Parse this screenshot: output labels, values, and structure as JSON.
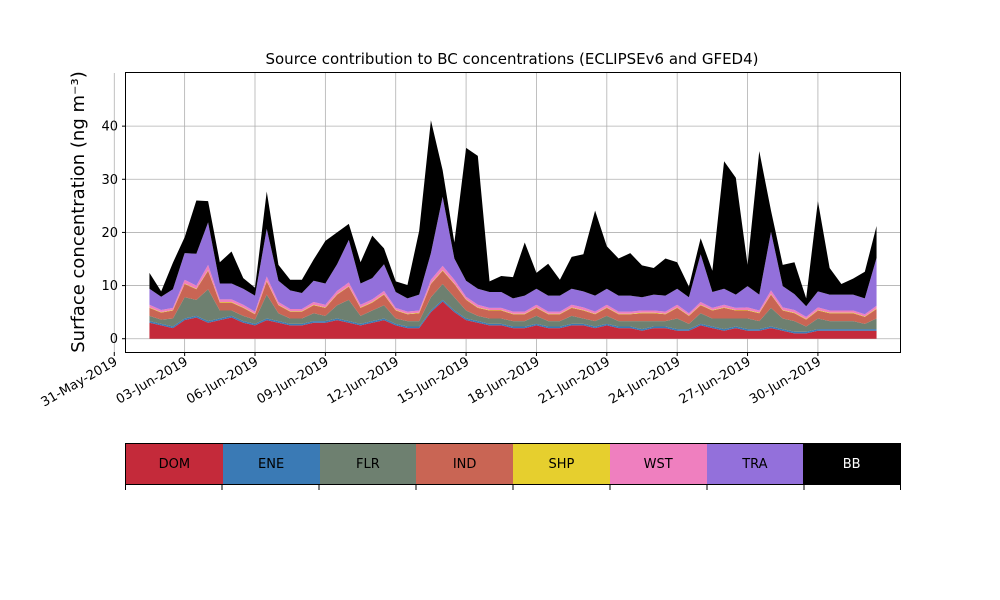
{
  "chart_data": {
    "type": "area",
    "stacked": true,
    "title": "Source contribution to BC concentrations (ECLIPSEv6 and GFED4)",
    "ylabel": "Surface concentration (ng m⁻³)",
    "xlabel": "",
    "ylim": [
      -2.5,
      50
    ],
    "xlim": [
      "2019-05-31T12:00",
      "2019-07-03T12:00"
    ],
    "grid": true,
    "yticks": [
      0,
      10,
      20,
      30,
      40
    ],
    "xtick_labels": [
      "31-May-2019",
      "03-Jun-2019",
      "06-Jun-2019",
      "09-Jun-2019",
      "12-Jun-2019",
      "15-Jun-2019",
      "18-Jun-2019",
      "21-Jun-2019",
      "24-Jun-2019",
      "27-Jun-2019",
      "30-Jun-2019"
    ],
    "x": [
      "2019-06-01T12:00",
      "2019-06-02T00:00",
      "2019-06-02T12:00",
      "2019-06-03T00:00",
      "2019-06-03T12:00",
      "2019-06-04T00:00",
      "2019-06-04T12:00",
      "2019-06-05T00:00",
      "2019-06-05T12:00",
      "2019-06-06T00:00",
      "2019-06-06T12:00",
      "2019-06-07T00:00",
      "2019-06-07T12:00",
      "2019-06-08T00:00",
      "2019-06-08T12:00",
      "2019-06-09T00:00",
      "2019-06-09T12:00",
      "2019-06-10T00:00",
      "2019-06-10T12:00",
      "2019-06-11T00:00",
      "2019-06-11T12:00",
      "2019-06-12T00:00",
      "2019-06-12T12:00",
      "2019-06-13T00:00",
      "2019-06-13T12:00",
      "2019-06-14T00:00",
      "2019-06-14T12:00",
      "2019-06-15T00:00",
      "2019-06-15T12:00",
      "2019-06-16T00:00",
      "2019-06-16T12:00",
      "2019-06-17T00:00",
      "2019-06-17T12:00",
      "2019-06-18T00:00",
      "2019-06-18T12:00",
      "2019-06-19T00:00",
      "2019-06-19T12:00",
      "2019-06-20T00:00",
      "2019-06-20T12:00",
      "2019-06-21T00:00",
      "2019-06-21T12:00",
      "2019-06-22T00:00",
      "2019-06-22T12:00",
      "2019-06-23T00:00",
      "2019-06-23T12:00",
      "2019-06-24T00:00",
      "2019-06-24T12:00",
      "2019-06-25T00:00",
      "2019-06-25T12:00",
      "2019-06-26T00:00",
      "2019-06-26T12:00",
      "2019-06-27T00:00",
      "2019-06-27T12:00",
      "2019-06-28T00:00",
      "2019-06-28T12:00",
      "2019-06-29T00:00",
      "2019-06-29T12:00",
      "2019-06-30T00:00",
      "2019-06-30T12:00",
      "2019-07-01T00:00",
      "2019-07-01T12:00",
      "2019-07-02T00:00",
      "2019-07-02T12:00"
    ],
    "series": [
      {
        "name": "DOM",
        "color": "#c42a3a",
        "values": [
          3.0,
          2.5,
          2.0,
          3.5,
          4.0,
          3.0,
          3.5,
          4.0,
          3.0,
          2.5,
          3.5,
          3.0,
          2.5,
          2.5,
          3.0,
          3.0,
          3.5,
          3.0,
          2.5,
          3.0,
          3.5,
          2.5,
          2.0,
          2.0,
          5.0,
          7.0,
          5.0,
          3.5,
          3.0,
          2.5,
          2.5,
          2.0,
          2.0,
          2.5,
          2.0,
          2.0,
          2.5,
          2.5,
          2.0,
          2.5,
          2.0,
          2.0,
          1.5,
          2.0,
          2.0,
          1.5,
          1.5,
          2.5,
          2.0,
          1.5,
          2.0,
          1.5,
          1.5,
          2.0,
          1.5,
          1.0,
          1.0,
          1.5,
          1.5,
          1.5,
          1.5,
          1.5,
          1.5
        ]
      },
      {
        "name": "ENE",
        "color": "#3a7ab5",
        "values": [
          0.3,
          0.3,
          0.3,
          0.3,
          0.3,
          0.3,
          0.3,
          0.3,
          0.3,
          0.3,
          0.3,
          0.3,
          0.3,
          0.3,
          0.3,
          0.3,
          0.3,
          0.3,
          0.3,
          0.3,
          0.3,
          0.3,
          0.3,
          0.3,
          0.3,
          0.3,
          0.3,
          0.3,
          0.3,
          0.3,
          0.3,
          0.3,
          0.3,
          0.3,
          0.3,
          0.3,
          0.3,
          0.3,
          0.3,
          0.3,
          0.3,
          0.3,
          0.3,
          0.3,
          0.3,
          0.3,
          0.3,
          0.3,
          0.3,
          0.3,
          0.3,
          0.3,
          0.3,
          0.3,
          0.3,
          0.3,
          0.3,
          0.3,
          0.3,
          0.3,
          0.3,
          0.3,
          0.3
        ]
      },
      {
        "name": "FLR",
        "color": "#6e8070",
        "values": [
          1.0,
          0.8,
          1.5,
          4.0,
          3.0,
          6.0,
          1.5,
          1.0,
          1.0,
          0.8,
          4.5,
          1.5,
          1.0,
          1.0,
          1.5,
          1.0,
          2.5,
          4.0,
          1.5,
          2.0,
          2.5,
          1.0,
          1.0,
          1.0,
          2.5,
          3.0,
          2.5,
          1.5,
          1.0,
          1.0,
          1.0,
          1.0,
          1.0,
          1.5,
          1.0,
          1.0,
          1.5,
          1.0,
          1.0,
          1.5,
          1.0,
          1.0,
          1.5,
          1.0,
          1.0,
          2.0,
          1.0,
          2.0,
          1.5,
          2.0,
          1.5,
          2.0,
          1.5,
          3.5,
          2.0,
          2.0,
          1.0,
          2.0,
          1.5,
          1.5,
          1.5,
          1.0,
          2.0
        ]
      },
      {
        "name": "IND",
        "color": "#c96554",
        "values": [
          1.5,
          1.3,
          1.5,
          2.5,
          2.0,
          3.5,
          1.5,
          1.5,
          1.5,
          1.0,
          2.5,
          1.5,
          1.3,
          1.3,
          1.5,
          1.5,
          2.0,
          2.5,
          1.5,
          1.5,
          2.0,
          1.5,
          1.3,
          1.5,
          2.5,
          2.5,
          2.5,
          2.0,
          1.5,
          1.5,
          1.5,
          1.3,
          1.3,
          1.5,
          1.3,
          1.3,
          1.5,
          1.5,
          1.3,
          1.5,
          1.3,
          1.3,
          1.5,
          1.5,
          1.3,
          2.0,
          1.5,
          1.5,
          1.5,
          2.0,
          1.5,
          1.5,
          1.5,
          2.5,
          1.5,
          1.5,
          1.3,
          1.5,
          1.5,
          1.5,
          1.5,
          1.3,
          1.8
        ]
      },
      {
        "name": "SHP",
        "color": "#e6cf2e",
        "values": [
          0.1,
          0.1,
          0.1,
          0.1,
          0.1,
          0.1,
          0.1,
          0.1,
          0.1,
          0.1,
          0.1,
          0.1,
          0.1,
          0.1,
          0.1,
          0.1,
          0.1,
          0.1,
          0.1,
          0.1,
          0.1,
          0.1,
          0.1,
          0.1,
          0.1,
          0.1,
          0.1,
          0.1,
          0.1,
          0.1,
          0.1,
          0.1,
          0.1,
          0.1,
          0.1,
          0.1,
          0.1,
          0.1,
          0.1,
          0.1,
          0.1,
          0.1,
          0.1,
          0.1,
          0.1,
          0.1,
          0.1,
          0.1,
          0.1,
          0.1,
          0.1,
          0.1,
          0.1,
          0.1,
          0.1,
          0.1,
          0.1,
          0.1,
          0.1,
          0.1,
          0.1,
          0.1,
          0.1
        ]
      },
      {
        "name": "WST",
        "color": "#ef7fbf",
        "values": [
          0.5,
          0.4,
          0.4,
          0.7,
          0.6,
          1.0,
          0.5,
          0.5,
          0.5,
          0.4,
          0.8,
          0.5,
          0.4,
          0.4,
          0.5,
          0.5,
          0.6,
          0.7,
          0.5,
          0.5,
          0.6,
          0.4,
          0.4,
          0.4,
          0.7,
          0.8,
          0.7,
          0.5,
          0.5,
          0.4,
          0.4,
          0.4,
          0.4,
          0.5,
          0.4,
          0.4,
          0.5,
          0.5,
          0.4,
          0.5,
          0.4,
          0.4,
          0.4,
          0.4,
          0.4,
          0.5,
          0.4,
          0.5,
          0.4,
          0.5,
          0.4,
          0.5,
          0.4,
          0.7,
          0.5,
          0.5,
          0.4,
          0.5,
          0.4,
          0.4,
          0.4,
          0.4,
          0.5
        ]
      },
      {
        "name": "TRA",
        "color": "#9370db",
        "values": [
          3.0,
          2.5,
          3.5,
          5.0,
          6.0,
          8.0,
          3.0,
          3.0,
          3.0,
          3.0,
          9.0,
          4.0,
          3.5,
          3.0,
          4.0,
          4.0,
          5.0,
          8.0,
          4.0,
          4.0,
          5.0,
          3.0,
          2.5,
          3.0,
          5.0,
          13.0,
          4.0,
          3.0,
          3.0,
          3.0,
          3.0,
          2.5,
          3.0,
          3.0,
          3.0,
          3.0,
          3.0,
          3.0,
          3.0,
          3.0,
          3.0,
          3.0,
          2.5,
          3.0,
          3.0,
          3.0,
          3.0,
          9.0,
          3.0,
          3.0,
          2.5,
          4.0,
          3.0,
          11.0,
          4.0,
          3.0,
          2.0,
          3.0,
          3.0,
          3.0,
          3.0,
          3.0,
          9.0
        ]
      },
      {
        "name": "BB",
        "color": "#000000",
        "values": [
          3.0,
          1.0,
          5.0,
          3.0,
          10.0,
          4.0,
          4.0,
          6.0,
          2.0,
          1.5,
          7.0,
          3.0,
          2.0,
          2.5,
          4.0,
          8.0,
          6.0,
          3.0,
          4.0,
          8.0,
          3.0,
          2.0,
          2.5,
          12.0,
          25.0,
          5.0,
          3.0,
          25.0,
          25.0,
          2.0,
          3.0,
          4.0,
          10.0,
          3.0,
          6.0,
          3.0,
          6.0,
          7.0,
          16.0,
          8.0,
          7.0,
          8.0,
          6.0,
          5.0,
          7.0,
          5.0,
          2.0,
          3.0,
          4.0,
          24.0,
          22.0,
          4.0,
          27.0,
          4.0,
          4.0,
          6.0,
          1.5,
          17.0,
          5.0,
          2.0,
          3.0,
          5.0,
          6.0
        ]
      }
    ],
    "legend": {
      "placement": "below",
      "items": [
        {
          "label": "DOM",
          "color": "#c42a3a",
          "text_color": "#000000"
        },
        {
          "label": "ENE",
          "color": "#3a7ab5",
          "text_color": "#000000"
        },
        {
          "label": "FLR",
          "color": "#6e8070",
          "text_color": "#000000"
        },
        {
          "label": "IND",
          "color": "#c96554",
          "text_color": "#000000"
        },
        {
          "label": "SHP",
          "color": "#e6cf2e",
          "text_color": "#000000"
        },
        {
          "label": "WST",
          "color": "#ef7fbf",
          "text_color": "#000000"
        },
        {
          "label": "TRA",
          "color": "#9370db",
          "text_color": "#000000"
        },
        {
          "label": "BB",
          "color": "#000000",
          "text_color": "#ffffff"
        }
      ]
    }
  }
}
